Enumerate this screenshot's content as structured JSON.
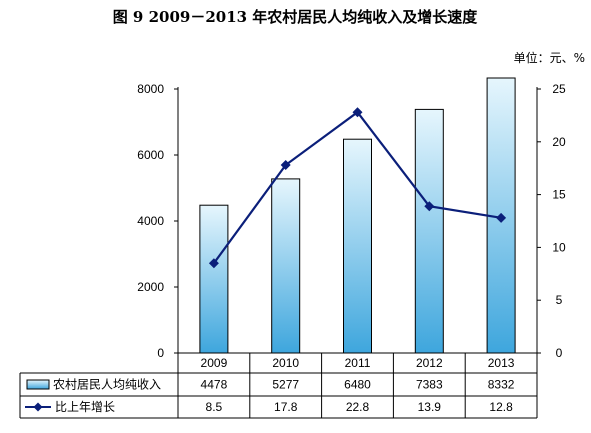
{
  "chart_data": {
    "type": "bar+line",
    "title": "图 9    2009－2013 年农村居民人均纯收入及增长速度",
    "unit": "单位：元、%",
    "categories": [
      "2009",
      "2010",
      "2011",
      "2012",
      "2013"
    ],
    "left_axis": {
      "min": 0,
      "max": 8000,
      "ticks": [
        "0",
        "2000",
        "4000",
        "6000",
        "8000"
      ]
    },
    "right_axis": {
      "min": 0,
      "max": 25,
      "ticks": [
        "0",
        "5",
        "10",
        "15",
        "20",
        "25"
      ]
    },
    "series": [
      {
        "name": "农村居民人均纯收入",
        "type": "bar",
        "axis": "left",
        "values": [
          4478,
          5277,
          6480,
          7383,
          8332
        ],
        "labels": [
          "4478",
          "5277",
          "6480",
          "7383",
          "8332"
        ]
      },
      {
        "name": "比上年增长",
        "type": "line",
        "axis": "right",
        "values": [
          8.5,
          17.8,
          22.8,
          13.9,
          12.8
        ],
        "labels": [
          "8.5",
          "17.8",
          "22.8",
          "13.9",
          "12.8"
        ]
      }
    ],
    "grid": false,
    "legend": "data-table-below"
  },
  "colors": {
    "bar_top": "#e6f6fd",
    "bar_bottom": "#3ea6dd",
    "bar_stroke": "#000000",
    "line": "#0b1f7a",
    "axis": "#000000"
  }
}
